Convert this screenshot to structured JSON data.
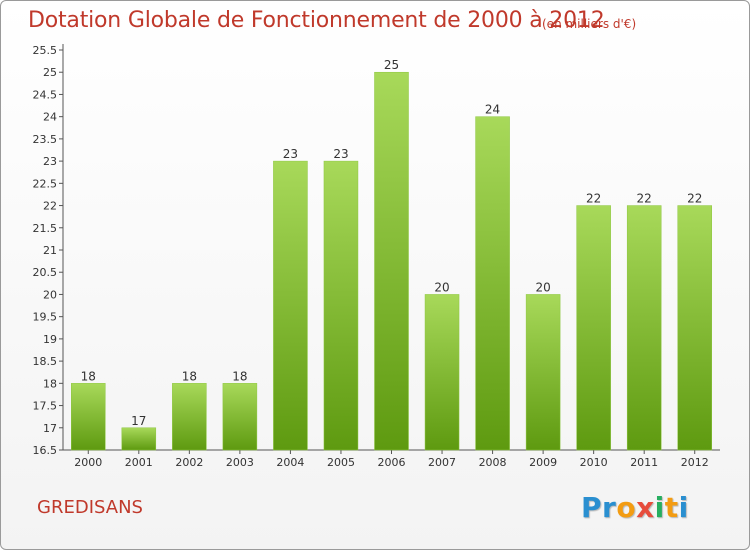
{
  "header": {
    "title": "Dotation Globale de Fonctionnement de 2000 à 2012",
    "subtitle": "(en milliers d'€)"
  },
  "footer": {
    "place": "GREDISANS",
    "logo_letters": [
      {
        "ch": "P",
        "color": "#2a8fd0"
      },
      {
        "ch": "r",
        "color": "#2a8fd0"
      },
      {
        "ch": "o",
        "color": "#f39c12"
      },
      {
        "ch": "x",
        "color": "#e74c3c"
      },
      {
        "ch": "i",
        "color": "#27ae60"
      },
      {
        "ch": "t",
        "color": "#f39c12"
      },
      {
        "ch": "i",
        "color": "#2a8fd0"
      }
    ]
  },
  "colors": {
    "title": "#c0392b",
    "bar_top": "#a8d95a",
    "bar_bottom": "#5e9a10"
  },
  "chart_data": {
    "type": "bar",
    "title": "Dotation Globale de Fonctionnement de 2000 à 2012",
    "subtitle": "(en milliers d'€)",
    "categories": [
      "2000",
      "2001",
      "2002",
      "2003",
      "2004",
      "2005",
      "2006",
      "2007",
      "2008",
      "2009",
      "2010",
      "2011",
      "2012"
    ],
    "values": [
      18,
      17,
      18,
      18,
      23,
      23,
      25,
      20,
      24,
      20,
      22,
      22,
      22
    ],
    "ylim": [
      16.5,
      25.5
    ],
    "yticks": [
      "16.5",
      "17",
      "17.5",
      "18",
      "18.5",
      "19",
      "19.5",
      "20",
      "20.5",
      "21",
      "21.5",
      "22",
      "22.5",
      "23",
      "23.5",
      "24",
      "24.5",
      "25",
      "25.5"
    ],
    "grid": false,
    "data_labels": true
  }
}
